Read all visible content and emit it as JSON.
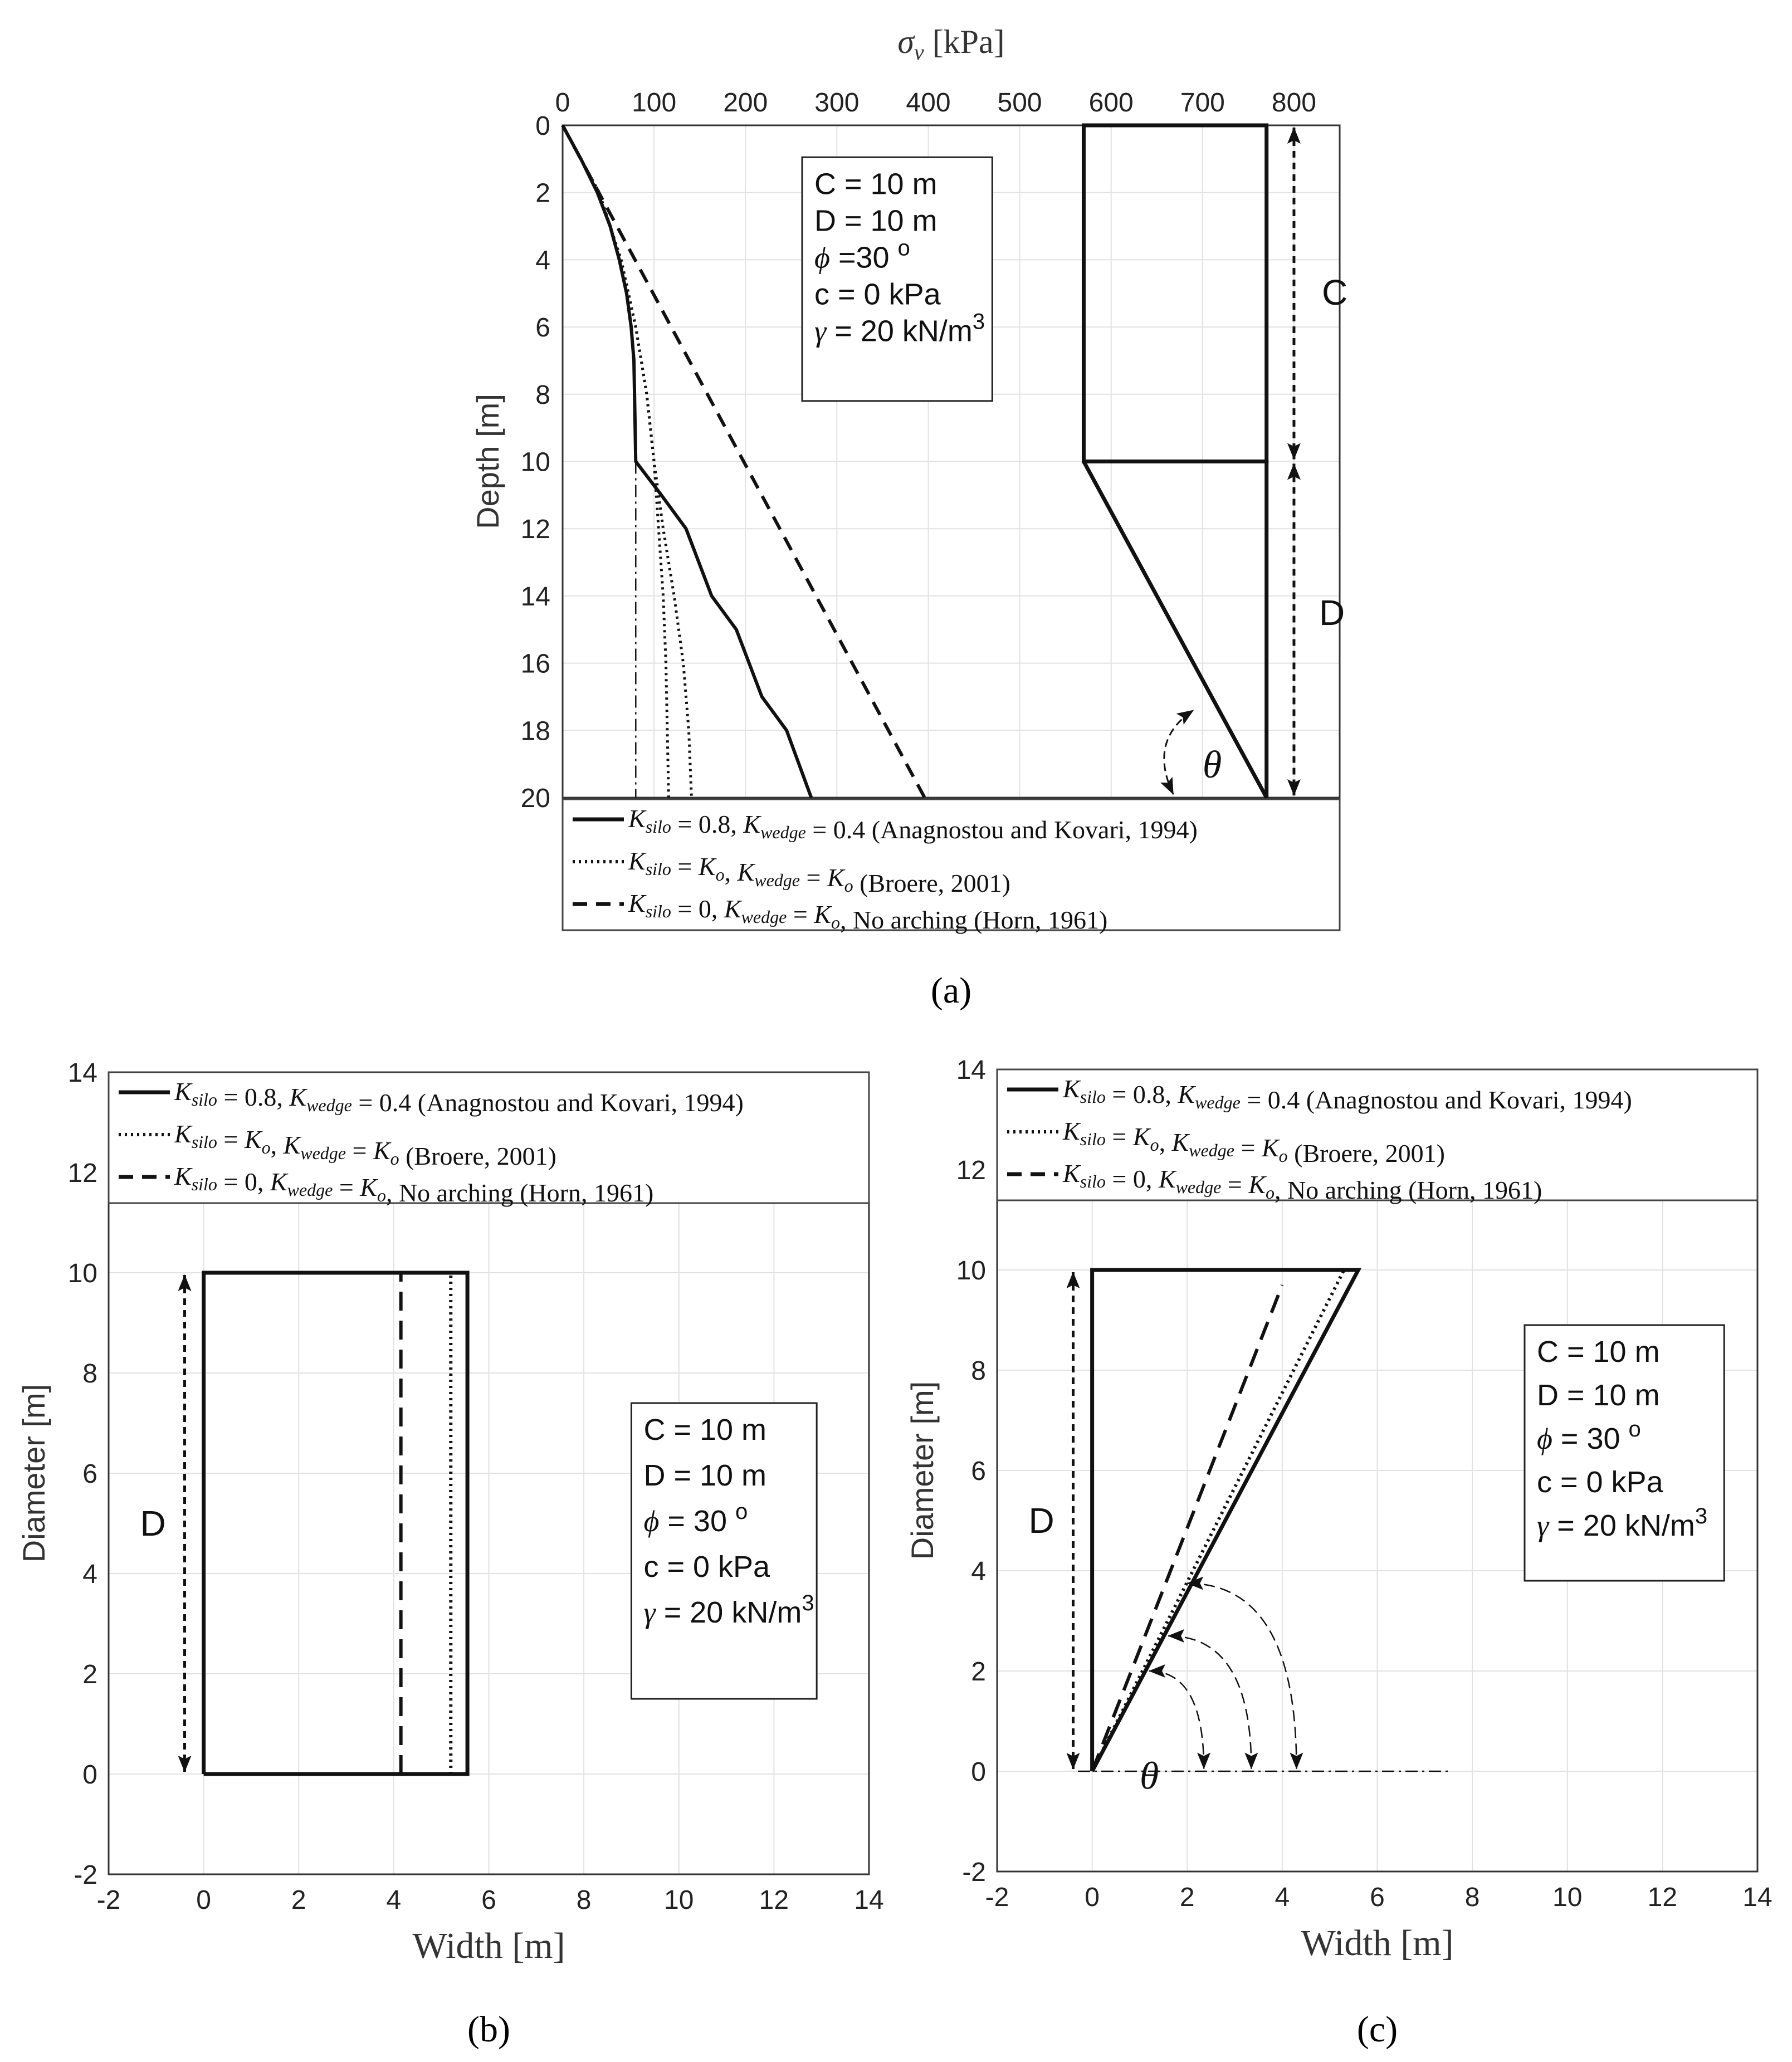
{
  "chart_data": [
    {
      "id": "a",
      "type": "line",
      "caption": "(a)",
      "xlabel_symbol": "σ",
      "xlabel_sub": "v",
      "xlabel_unit": "[kPa]",
      "ylabel": "Depth [m]",
      "xlim": [
        0,
        850
      ],
      "ylim": [
        0,
        20
      ],
      "y_reversed": true,
      "xticks": [
        0,
        100,
        200,
        300,
        400,
        500,
        600,
        700,
        800
      ],
      "yticks": [
        0,
        2,
        4,
        6,
        8,
        10,
        12,
        14,
        16,
        18,
        20
      ],
      "params": [
        "C = 10 m",
        "D = 10 m",
        "ϕ =30 o",
        "c = 0 kPa",
        "γ = 20 kN/m3"
      ],
      "legend": [
        {
          "style": "solid",
          "math": "K_silo = 0.8, K_wedge = 0.4",
          "text": "(Anagnostou and Kovari, 1994)"
        },
        {
          "style": "dotted",
          "math": "K_silo = K_o, K_wedge = K_o",
          "text": "(Broere, 2001)"
        },
        {
          "style": "dashed",
          "math": "K_silo = 0, K_wedge = K_o, No arching",
          "text": "(Horn, 1961)"
        }
      ],
      "series": [
        {
          "name": "Anagnostou and Kovari, 1994",
          "style": "solid",
          "x": [
            0,
            20,
            38,
            52,
            62,
            70,
            75,
            78,
            80,
            108,
            135,
            163,
            190,
            218,
            245,
            272
          ],
          "y": [
            0,
            1,
            2,
            3,
            4,
            5,
            6,
            7,
            10,
            11,
            12,
            14,
            15,
            17,
            18,
            20
          ]
        },
        {
          "name": "Broere, 2001",
          "style": "dotted",
          "x": [
            0,
            40,
            64,
            80,
            92,
            100,
            105,
            110,
            113,
            116
          ],
          "y": [
            0,
            2,
            4,
            6,
            8,
            10,
            12,
            14,
            16,
            20
          ]
        },
        {
          "name": "Broere, 2001 (wedge)",
          "style": "dotted",
          "x": [
            0,
            40,
            64,
            80,
            92,
            100,
            110,
            122,
            132,
            138,
            141
          ],
          "y": [
            0,
            2,
            4,
            6,
            8,
            10,
            12,
            14,
            16,
            18,
            20
          ]
        },
        {
          "name": "Horn, 1961",
          "style": "dashed",
          "x": [
            0,
            396
          ],
          "y": [
            0,
            20
          ]
        },
        {
          "name": "silo limit",
          "style": "dashdot",
          "x": [
            80,
            80
          ],
          "y": [
            10,
            20
          ]
        }
      ],
      "schematic_labels": {
        "c": "C",
        "d": "D",
        "theta": "θ"
      }
    },
    {
      "id": "b",
      "type": "line",
      "caption": "(b)",
      "xlabel": "Width [m]",
      "ylabel": "Diameter [m]",
      "xlim": [
        -2,
        14
      ],
      "ylim": [
        -2,
        14
      ],
      "xticks": [
        -2,
        0,
        2,
        4,
        6,
        8,
        10,
        12,
        14
      ],
      "yticks": [
        -2,
        0,
        2,
        4,
        6,
        8,
        10,
        12,
        14
      ],
      "params": [
        "C = 10 m",
        "D = 10 m",
        "ϕ = 30 o",
        "c = 0 kPa",
        "γ = 20 kN/m3"
      ],
      "legend": [
        {
          "style": "solid",
          "math": "K_silo = 0.8, K_wedge = 0.4",
          "text": "(Anagnostou and Kovari, 1994)"
        },
        {
          "style": "dotted",
          "math": "K_silo = K_o, K_wedge = K_o",
          "text": "(Broere, 2001)"
        },
        {
          "style": "dashed",
          "math": "K_silo = 0, K_wedge = K_o, No arching",
          "text": "(Horn, 1961)"
        }
      ],
      "series": [
        {
          "name": "Anagnostou and Kovari, 1994",
          "style": "solid",
          "x": [
            0,
            5.55,
            5.55,
            0,
            0
          ],
          "y": [
            0,
            0,
            10,
            10,
            0
          ]
        },
        {
          "name": "Broere, 2001",
          "style": "dotted",
          "x": [
            5.2,
            5.2
          ],
          "y": [
            0,
            10
          ]
        },
        {
          "name": "Horn, 1961",
          "style": "dashed",
          "x": [
            4.15,
            4.15
          ],
          "y": [
            0,
            10
          ]
        }
      ],
      "dimension_label": "D"
    },
    {
      "id": "c",
      "type": "line",
      "caption": "(c)",
      "xlabel": "Width [m]",
      "ylabel": "Diameter [m]",
      "xlim": [
        -2,
        14
      ],
      "ylim": [
        -2,
        14
      ],
      "xticks": [
        -2,
        0,
        2,
        4,
        6,
        8,
        10,
        12,
        14
      ],
      "yticks": [
        -2,
        0,
        2,
        4,
        6,
        8,
        10,
        12,
        14
      ],
      "params": [
        "C = 10 m",
        "D = 10 m",
        "ϕ = 30 o",
        "c = 0 kPa",
        "γ = 20 kN/m3"
      ],
      "legend": [
        {
          "style": "solid",
          "math": "K_silo = 0.8, K_wedge = 0.4",
          "text": "(Anagnostou and Kovari, 1994)"
        },
        {
          "style": "dotted",
          "math": "K_silo = K_o, K_wedge = K_o",
          "text": "(Broere, 2001)"
        },
        {
          "style": "dashed",
          "math": "K_silo = 0, K_wedge = K_o, No arching",
          "text": "(Horn, 1961)"
        }
      ],
      "series": [
        {
          "name": "Anagnostou and Kovari, 1994",
          "style": "solid",
          "x": [
            0,
            0,
            5.6,
            0
          ],
          "y": [
            0,
            10,
            10,
            0
          ]
        },
        {
          "name": "Broere, 2001",
          "style": "dotted",
          "x": [
            0,
            5.3
          ],
          "y": [
            0,
            10
          ]
        },
        {
          "name": "Horn, 1961",
          "style": "dashed",
          "x": [
            0,
            4.0
          ],
          "y": [
            0,
            9.7
          ]
        },
        {
          "name": "ground line",
          "style": "dashdot",
          "x": [
            -0.3,
            7.5
          ],
          "y": [
            0,
            0
          ]
        }
      ],
      "dimension_label": "D",
      "theta_label": "θ"
    }
  ]
}
